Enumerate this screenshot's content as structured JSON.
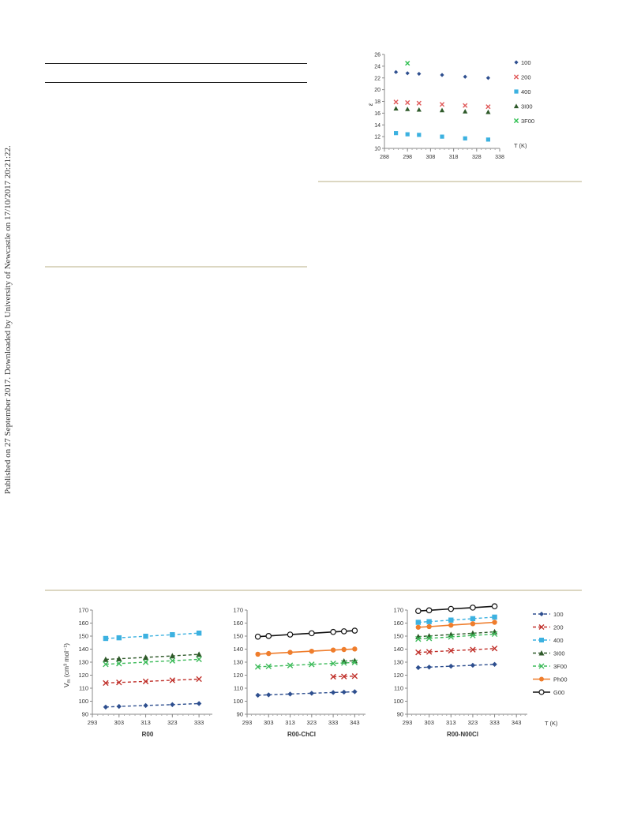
{
  "side_note": "Published on 27 September 2017. Downloaded by University of Newcastle on 17/10/2017 20:21:22.",
  "chart_data": [
    {
      "type": "scatter",
      "xlabel": "T (K)",
      "ylabel": "ε",
      "xlim": [
        288,
        338
      ],
      "ylim": [
        10,
        26
      ],
      "xticks": [
        288,
        298,
        308,
        318,
        328,
        338
      ],
      "yticks": [
        10,
        12,
        14,
        16,
        18,
        20,
        22,
        24,
        26
      ],
      "legend_position": "right",
      "series": [
        {
          "name": "100",
          "color": "#2e4f8f",
          "marker": "diamond",
          "x": [
            293,
            298,
            303,
            313,
            323,
            333
          ],
          "y": [
            23.0,
            22.8,
            22.7,
            22.5,
            22.2,
            22.0
          ]
        },
        {
          "name": "200",
          "color": "#e05a5a",
          "marker": "x",
          "x": [
            293,
            298,
            303,
            313,
            323,
            333
          ],
          "y": [
            17.9,
            17.8,
            17.7,
            17.5,
            17.3,
            17.1
          ]
        },
        {
          "name": "400",
          "color": "#3cb1e0",
          "marker": "square",
          "x": [
            293,
            298,
            303,
            313,
            323,
            333
          ],
          "y": [
            12.6,
            12.4,
            12.3,
            12.0,
            11.7,
            11.5
          ]
        },
        {
          "name": "3I00",
          "color": "#2f5a2a",
          "marker": "triangle",
          "x": [
            293,
            298,
            303,
            313,
            323,
            333
          ],
          "y": [
            16.8,
            16.7,
            16.6,
            16.5,
            16.3,
            16.2
          ]
        },
        {
          "name": "3F00",
          "color": "#2dbf4f",
          "marker": "x",
          "x": [
            298
          ],
          "y": [
            24.5
          ]
        }
      ]
    },
    {
      "type": "line",
      "xlabel": "R00",
      "ylabel": "V",
      "ylabel_sub": "m",
      "ylabel_units": " (cm³ mol⁻¹)",
      "xlim": [
        293,
        338
      ],
      "ylim": [
        90,
        170
      ],
      "xticks": [
        293,
        303,
        313,
        323,
        333
      ],
      "yticks": [
        90,
        100,
        110,
        120,
        130,
        140,
        150,
        160,
        170
      ],
      "series": [
        {
          "name": "100",
          "color": "#2e4f8f",
          "marker": "diamond",
          "dash": true,
          "x": [
            298,
            303,
            313,
            323,
            333
          ],
          "y": [
            95.5,
            96.0,
            96.7,
            97.4,
            98.2
          ]
        },
        {
          "name": "200",
          "color": "#c0302a",
          "marker": "x",
          "dash": true,
          "x": [
            298,
            303,
            313,
            323,
            333
          ],
          "y": [
            114.0,
            114.4,
            115.2,
            116.1,
            117.0
          ]
        },
        {
          "name": "400",
          "color": "#3cb1e0",
          "marker": "square",
          "dash": true,
          "x": [
            298,
            303,
            313,
            323,
            333
          ],
          "y": [
            148.2,
            148.7,
            149.9,
            151.1,
            152.3
          ]
        },
        {
          "name": "3I00",
          "color": "#2f5a2a",
          "marker": "triangle",
          "dash": true,
          "x": [
            298,
            303,
            313,
            323,
            333
          ],
          "y": [
            132.1,
            132.6,
            133.7,
            134.8,
            136.0
          ]
        },
        {
          "name": "3F00",
          "color": "#3dbb5a",
          "marker": "x",
          "dash": true,
          "x": [
            298,
            303,
            313,
            323,
            333
          ],
          "y": [
            128.4,
            128.9,
            130.0,
            131.1,
            132.2
          ]
        }
      ]
    },
    {
      "type": "line",
      "xlabel": "R00-ChCl",
      "xlim": [
        293,
        348
      ],
      "ylim": [
        90,
        170
      ],
      "xticks": [
        293,
        303,
        313,
        323,
        333,
        343
      ],
      "yticks": [
        90,
        100,
        110,
        120,
        130,
        140,
        150,
        160,
        170
      ],
      "series": [
        {
          "name": "100",
          "color": "#2e4f8f",
          "marker": "diamond",
          "dash": true,
          "x": [
            298,
            303,
            313,
            323,
            333,
            338,
            343
          ],
          "y": [
            104.6,
            104.9,
            105.5,
            106.1,
            106.7,
            107.0,
            107.3
          ]
        },
        {
          "name": "200",
          "color": "#c0302a",
          "marker": "x",
          "dash": true,
          "x": [
            333,
            338,
            343
          ],
          "y": [
            118.8,
            119.0,
            119.3
          ]
        },
        {
          "name": "3I00",
          "color": "#2f5a2a",
          "marker": "triangle",
          "dash": true,
          "x": [
            338,
            343
          ],
          "y": [
            130.8,
            131.1
          ]
        },
        {
          "name": "3F00",
          "color": "#3dbb5a",
          "marker": "x",
          "dash": true,
          "x": [
            298,
            303,
            313,
            323,
            333,
            338,
            343
          ],
          "y": [
            126.4,
            126.8,
            127.5,
            128.3,
            129.0,
            129.4,
            129.8
          ]
        },
        {
          "name": "Ph00",
          "color": "#ef7d2c",
          "marker": "circle-filled",
          "dash": false,
          "x": [
            298,
            303,
            313,
            323,
            333,
            338,
            343
          ],
          "y": [
            136.1,
            136.6,
            137.5,
            138.4,
            139.3,
            139.7,
            140.1
          ]
        },
        {
          "name": "G00",
          "color": "#111111",
          "marker": "circle-open",
          "dash": false,
          "x": [
            298,
            303,
            313,
            323,
            333,
            338,
            343
          ],
          "y": [
            149.6,
            150.1,
            151.2,
            152.2,
            153.2,
            153.7,
            154.2
          ]
        }
      ]
    },
    {
      "type": "line",
      "xlabel": "R00-N00Cl",
      "xlabel_right": "T (K)",
      "xlim": [
        293,
        348
      ],
      "ylim": [
        90,
        170
      ],
      "xticks": [
        293,
        303,
        313,
        323,
        333,
        343
      ],
      "yticks": [
        90,
        100,
        110,
        120,
        130,
        140,
        150,
        160,
        170
      ],
      "legend_position": "right",
      "series": [
        {
          "name": "100",
          "color": "#2e4f8f",
          "marker": "diamond",
          "dash": true,
          "x": [
            298,
            303,
            313,
            323,
            333
          ],
          "y": [
            125.8,
            126.2,
            126.9,
            127.6,
            128.3
          ]
        },
        {
          "name": "200",
          "color": "#c0302a",
          "marker": "x",
          "dash": true,
          "x": [
            298,
            303,
            313,
            323,
            333
          ],
          "y": [
            137.5,
            137.9,
            138.8,
            139.6,
            140.5
          ]
        },
        {
          "name": "400",
          "color": "#3cb1e0",
          "marker": "square",
          "dash": true,
          "x": [
            298,
            303,
            313,
            323,
            333
          ],
          "y": [
            160.6,
            161.1,
            162.3,
            163.4,
            164.6
          ]
        },
        {
          "name": "3I00",
          "color": "#2f5a2a",
          "marker": "triangle",
          "dash": true,
          "x": [
            298,
            303,
            313,
            323,
            333
          ],
          "y": [
            149.6,
            150.1,
            151.2,
            152.2,
            153.3
          ]
        },
        {
          "name": "3F00",
          "color": "#3dbb5a",
          "marker": "x",
          "dash": true,
          "x": [
            298,
            303,
            313,
            323,
            333
          ],
          "y": [
            147.8,
            148.3,
            149.4,
            150.5,
            151.6
          ]
        },
        {
          "name": "Ph00",
          "color": "#ef7d2c",
          "marker": "circle-filled",
          "dash": false,
          "x": [
            298,
            303,
            313,
            323,
            333
          ],
          "y": [
            156.8,
            157.3,
            158.4,
            159.5,
            160.6
          ]
        },
        {
          "name": "G00",
          "color": "#111111",
          "marker": "circle-open",
          "dash": false,
          "x": [
            298,
            303,
            313,
            323,
            333
          ],
          "y": [
            169.3,
            169.8,
            170.9,
            171.9,
            172.9
          ]
        }
      ]
    }
  ]
}
